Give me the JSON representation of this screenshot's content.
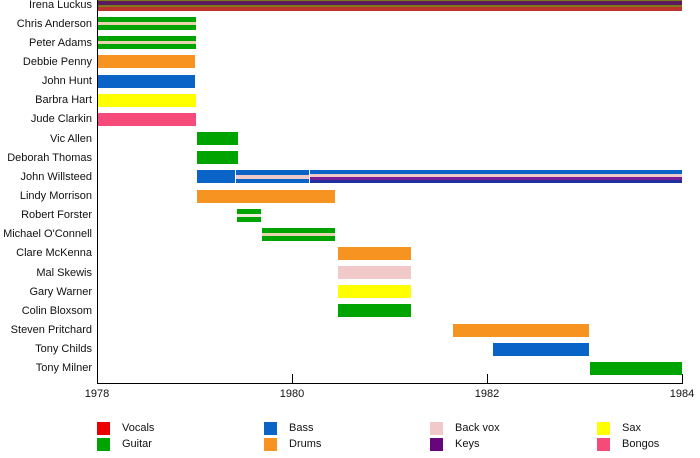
{
  "chart_data": {
    "type": "timeline",
    "title": "",
    "x_axis": {
      "min": 1978,
      "max": 1984,
      "tick_values": [
        1978,
        1980,
        1982,
        1984
      ],
      "tick_labels": [
        "1978",
        "1980",
        "1982",
        "1984"
      ]
    },
    "legend": [
      {
        "label": "Vocals",
        "color": "#EE0000"
      },
      {
        "label": "Guitar",
        "color": "#00A400"
      },
      {
        "label": "Bass",
        "color": "#0A64C8"
      },
      {
        "label": "Drums",
        "color": "#F79421"
      },
      {
        "label": "Back vox",
        "color": "#F2C9C9"
      },
      {
        "label": "Keys",
        "color": "#66067A"
      },
      {
        "label": "Sax",
        "color": "#FFFF00"
      },
      {
        "label": "Bongos",
        "color": "#F64A7B"
      }
    ],
    "members": [
      {
        "name": "Irena Luckus",
        "roles": [
          "Sax",
          "Keys",
          "Vocals"
        ],
        "bars": [
          {
            "start": 1978,
            "end": 1984,
            "stripes": [
              {
                "color": "#7D7818",
                "w": 3
              },
              {
                "color": "#5A1A5E",
                "w": 4
              },
              {
                "color": "#7D7818",
                "w": 2
              },
              {
                "color": "#BB342B",
                "w": 4
              }
            ]
          }
        ]
      },
      {
        "name": "Chris Anderson",
        "roles": [
          "Guitar",
          "Back vox"
        ],
        "bars": [
          {
            "start": 1978,
            "end": 1979.02,
            "stripes": [
              {
                "color": "#00A400",
                "w": 5
              },
              {
                "color": "#E9D3AF",
                "w": 3
              },
              {
                "color": "#00A400",
                "w": 5
              }
            ]
          }
        ]
      },
      {
        "name": "Peter Adams",
        "roles": [
          "Guitar",
          "Back vox"
        ],
        "bars": [
          {
            "start": 1978,
            "end": 1979.02,
            "stripes": [
              {
                "color": "#00A400",
                "w": 5
              },
              {
                "color": "#E9D3AF",
                "w": 3
              },
              {
                "color": "#00A400",
                "w": 5
              }
            ]
          }
        ]
      },
      {
        "name": "Debbie Penny",
        "roles": [
          "Drums"
        ],
        "bars": [
          {
            "start": 1978,
            "end": 1979,
            "stripes": [
              {
                "color": "#F79421",
                "w": 1
              }
            ]
          }
        ]
      },
      {
        "name": "John Hunt",
        "roles": [
          "Bass"
        ],
        "bars": [
          {
            "start": 1978,
            "end": 1979,
            "stripes": [
              {
                "color": "#0A64C8",
                "w": 1
              }
            ]
          }
        ]
      },
      {
        "name": "Barbra Hart",
        "roles": [
          "Sax"
        ],
        "bars": [
          {
            "start": 1978,
            "end": 1979.02,
            "stripes": [
              {
                "color": "#FFFF00",
                "w": 1
              }
            ]
          }
        ]
      },
      {
        "name": "Jude Clarkin",
        "roles": [
          "Bongos"
        ],
        "bars": [
          {
            "start": 1978,
            "end": 1979.02,
            "stripes": [
              {
                "color": "#F64A7B",
                "w": 1
              }
            ]
          }
        ]
      },
      {
        "name": "Vic Allen",
        "roles": [
          "Guitar"
        ],
        "bars": [
          {
            "start": 1979.02,
            "end": 1979.45,
            "stripes": [
              {
                "color": "#00A400",
                "w": 1
              }
            ]
          }
        ]
      },
      {
        "name": "Deborah Thomas",
        "roles": [
          "Guitar"
        ],
        "bars": [
          {
            "start": 1979.02,
            "end": 1979.45,
            "stripes": [
              {
                "color": "#00A400",
                "w": 1
              }
            ]
          }
        ]
      },
      {
        "name": "John Willsteed",
        "roles": [
          "Bass",
          "Back vox",
          "Keys"
        ],
        "bars": [
          {
            "start": 1979.02,
            "end": 1979.42,
            "stripes": [
              {
                "color": "#0A64C8",
                "w": 1
              }
            ]
          },
          {
            "start": 1979.42,
            "end": 1980.17,
            "stripes": [
              {
                "color": "#0A64C8",
                "w": 4
              },
              {
                "color": "#F2C9C9",
                "w": 3
              },
              {
                "color": "#0A64C8",
                "w": 4
              }
            ]
          },
          {
            "start": 1980.17,
            "end": 1984,
            "stripes": [
              {
                "color": "#0A64C8",
                "w": 3
              },
              {
                "color": "#F2C9C9",
                "w": 3
              },
              {
                "color": "#7A1E96",
                "w": 3
              },
              {
                "color": "#1F2FA0",
                "w": 3
              }
            ]
          }
        ]
      },
      {
        "name": "Lindy Morrison",
        "roles": [
          "Drums"
        ],
        "bars": [
          {
            "start": 1979.02,
            "end": 1980.44,
            "stripes": [
              {
                "color": "#F79421",
                "w": 1
              }
            ]
          }
        ]
      },
      {
        "name": "Robert Forster",
        "roles": [
          "Guitar",
          "Back vox"
        ],
        "bars": [
          {
            "start": 1979.43,
            "end": 1979.68,
            "stripes": [
              {
                "color": "#00A400",
                "w": 5
              },
              {
                "color": "#F0EBDC",
                "w": 3
              },
              {
                "color": "#00A400",
                "w": 5
              }
            ]
          }
        ]
      },
      {
        "name": "Michael O'Connell",
        "roles": [
          "Guitar",
          "Back vox"
        ],
        "bars": [
          {
            "start": 1979.68,
            "end": 1980.44,
            "stripes": [
              {
                "color": "#00A400",
                "w": 5
              },
              {
                "color": "#E9D3AF",
                "w": 3
              },
              {
                "color": "#00A400",
                "w": 5
              }
            ]
          }
        ]
      },
      {
        "name": "Clare McKenna",
        "roles": [
          "Drums"
        ],
        "bars": [
          {
            "start": 1980.46,
            "end": 1981.22,
            "stripes": [
              {
                "color": "#F79421",
                "w": 1
              }
            ]
          }
        ]
      },
      {
        "name": "Mal Skewis",
        "roles": [
          "Back vox"
        ],
        "bars": [
          {
            "start": 1980.46,
            "end": 1981.22,
            "stripes": [
              {
                "color": "#F2C9C9",
                "w": 1
              }
            ]
          }
        ]
      },
      {
        "name": "Gary Warner",
        "roles": [
          "Sax"
        ],
        "bars": [
          {
            "start": 1980.46,
            "end": 1981.22,
            "stripes": [
              {
                "color": "#FFFF00",
                "w": 1
              }
            ]
          }
        ]
      },
      {
        "name": "Colin Bloxsom",
        "roles": [
          "Guitar"
        ],
        "bars": [
          {
            "start": 1980.46,
            "end": 1981.22,
            "stripes": [
              {
                "color": "#00A400",
                "w": 1
              }
            ]
          }
        ]
      },
      {
        "name": "Steven Pritchard",
        "roles": [
          "Drums"
        ],
        "bars": [
          {
            "start": 1981.64,
            "end": 1983.05,
            "stripes": [
              {
                "color": "#F79421",
                "w": 1
              }
            ]
          }
        ]
      },
      {
        "name": "Tony Childs",
        "roles": [
          "Bass"
        ],
        "bars": [
          {
            "start": 1982.05,
            "end": 1983.05,
            "stripes": [
              {
                "color": "#0A64C8",
                "w": 1
              }
            ]
          }
        ]
      },
      {
        "name": "Tony Milner",
        "roles": [
          "Guitar"
        ],
        "bars": [
          {
            "start": 1983.05,
            "end": 1984,
            "stripes": [
              {
                "color": "#00A400",
                "w": 1
              }
            ]
          }
        ]
      }
    ]
  }
}
